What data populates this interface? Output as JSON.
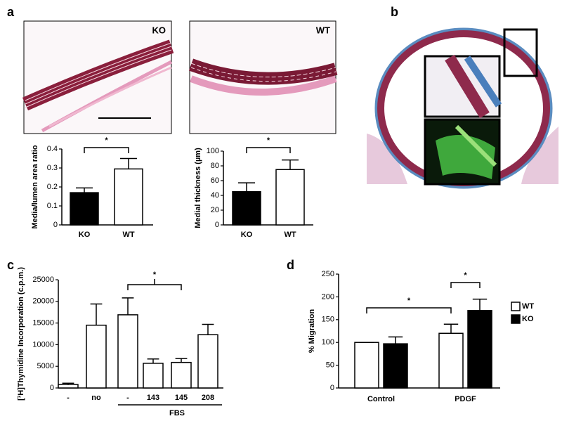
{
  "panel_labels": [
    "a",
    "b",
    "c",
    "d"
  ],
  "image_labels": [
    "KO",
    "WT"
  ],
  "chart_data": [
    {
      "type": "bar",
      "ylabel": "Media/lumen area ratio",
      "categories": [
        "KO",
        "WT"
      ],
      "values": [
        0.17,
        0.295
      ],
      "errors": [
        0.025,
        0.055
      ],
      "colors": [
        "#000000",
        "#ffffff"
      ],
      "ylim": [
        0,
        0.4
      ],
      "yticks": [
        0,
        0.1,
        0.2,
        0.3,
        0.4
      ],
      "annotations": [
        "*"
      ]
    },
    {
      "type": "bar",
      "ylabel": "Medial thickness (µm)",
      "categories": [
        "KO",
        "WT"
      ],
      "values": [
        45,
        75
      ],
      "errors": [
        12,
        13
      ],
      "colors": [
        "#000000",
        "#ffffff"
      ],
      "ylim": [
        0,
        100
      ],
      "yticks": [
        0,
        20,
        40,
        60,
        80,
        100
      ],
      "annotations": [
        "*"
      ]
    },
    {
      "type": "bar",
      "ylabel": "[³H]Thymidine Incorporation (c.p.m.)",
      "categories": [
        "-",
        "no",
        "-",
        "143",
        "145",
        "208"
      ],
      "values": [
        800,
        14500,
        16900,
        5700,
        5900,
        12300
      ],
      "errors": [
        300,
        4900,
        3900,
        1000,
        900,
        2400
      ],
      "color": "#ffffff",
      "group_label": "FBS",
      "ylim": [
        0,
        25000
      ],
      "yticks": [
        0,
        5000,
        10000,
        15000,
        20000,
        25000
      ],
      "annotations": [
        "*"
      ]
    },
    {
      "type": "grouped_bar",
      "ylabel": "% Migration",
      "categories": [
        "Control",
        "PDGF"
      ],
      "series": [
        {
          "name": "WT",
          "color": "#ffffff",
          "values": [
            100,
            120
          ],
          "errors": [
            0,
            20
          ]
        },
        {
          "name": "KO",
          "color": "#000000",
          "values": [
            97,
            170
          ],
          "errors": [
            15,
            25
          ]
        }
      ],
      "ylim": [
        0,
        250
      ],
      "yticks": [
        0,
        50,
        100,
        150,
        200,
        250
      ],
      "legend": "right",
      "annotations": [
        "*",
        "*"
      ]
    }
  ]
}
